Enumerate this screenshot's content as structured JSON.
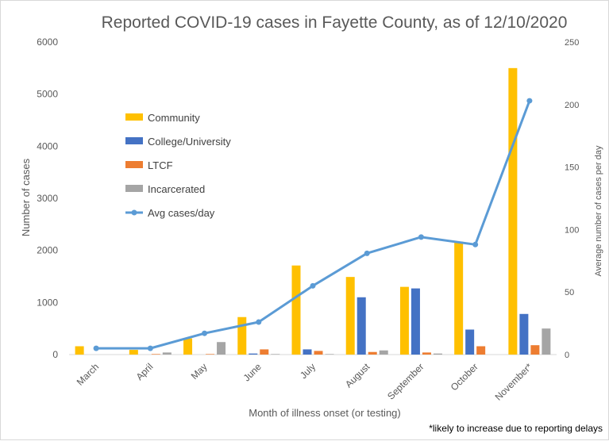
{
  "chart_data": {
    "type": "bar",
    "title": "Reported COVID-19 cases in Fayette County, as of 12/10/2020",
    "xlabel": "Month  of illness onset (or testing)",
    "ylabel": "Number of cases",
    "y2label": "Average number of cases per day",
    "footnote": "*likely to increase due to reporting delays",
    "categories": [
      "March",
      "April",
      "May",
      "June",
      "July",
      "August",
      "September",
      "October",
      "November*"
    ],
    "ylim": [
      0,
      6000
    ],
    "y2lim": [
      0,
      250
    ],
    "yticks": [
      0,
      1000,
      2000,
      3000,
      4000,
      5000,
      6000
    ],
    "y2ticks": [
      0,
      50,
      100,
      150,
      200,
      250
    ],
    "legend_position": "left-inside",
    "grid": false,
    "series": [
      {
        "name": "Community",
        "color": "#ffc000",
        "values": [
          160,
          90,
          310,
          720,
          1710,
          1490,
          1300,
          2170,
          5500
        ]
      },
      {
        "name": "College/University",
        "color": "#4472c4",
        "values": [
          0,
          0,
          0,
          20,
          100,
          1100,
          1270,
          480,
          780
        ]
      },
      {
        "name": "LTCF",
        "color": "#ed7d31",
        "values": [
          0,
          10,
          10,
          100,
          70,
          50,
          40,
          160,
          180
        ]
      },
      {
        "name": "Incarcerated",
        "color": "#a5a5a5",
        "values": [
          0,
          40,
          240,
          10,
          10,
          80,
          20,
          0,
          500
        ]
      }
    ],
    "line_series": {
      "name": "Avg cases/day",
      "color": "#5b9bd5",
      "axis": "right",
      "values": [
        5,
        5,
        17,
        26,
        55,
        81,
        94,
        88,
        203
      ]
    }
  }
}
